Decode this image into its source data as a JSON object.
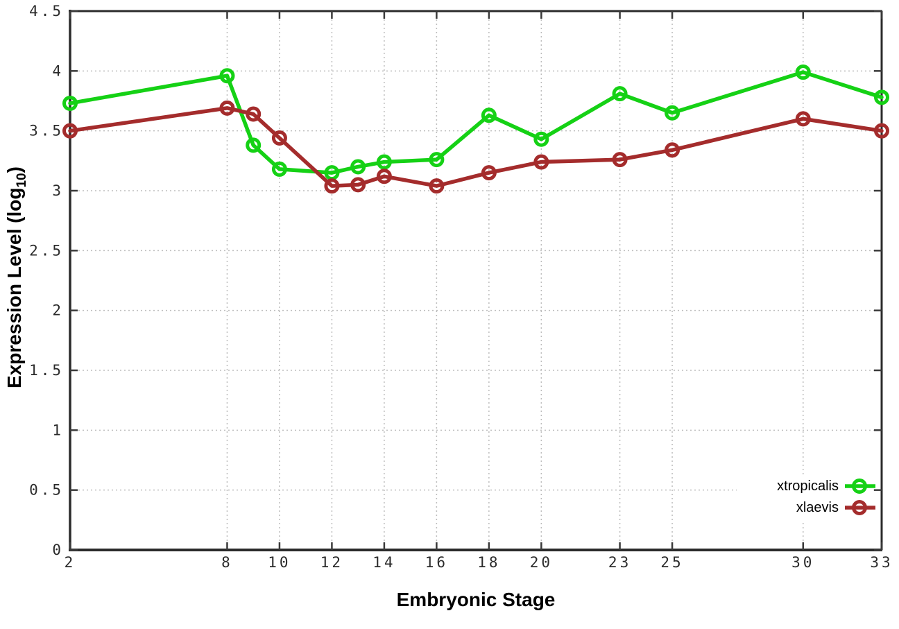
{
  "chart_data": {
    "type": "line",
    "title": "",
    "xlabel": "Embryonic Stage",
    "ylabel": "Expression Level (log10)",
    "ylabel_parts": {
      "pre": "Expression Level (log",
      "sub": "10",
      "post": ")"
    },
    "xlim": [
      2,
      33
    ],
    "ylim": [
      0,
      4.5
    ],
    "grid": true,
    "legend_position": "bottom-right",
    "xticks": [
      {
        "v": 2,
        "label": "2"
      },
      {
        "v": 8,
        "label": "8"
      },
      {
        "v": 10,
        "label": "10"
      },
      {
        "v": 12,
        "label": "12"
      },
      {
        "v": 14,
        "label": "14"
      },
      {
        "v": 16,
        "label": "16"
      },
      {
        "v": 18,
        "label": "18"
      },
      {
        "v": 20,
        "label": "20"
      },
      {
        "v": 23,
        "label": "23"
      },
      {
        "v": 25,
        "label": "25"
      },
      {
        "v": 30,
        "label": "30"
      },
      {
        "v": 33,
        "label": "33"
      }
    ],
    "yticks": [
      {
        "v": 0,
        "label": "0"
      },
      {
        "v": 0.5,
        "label": "0.5"
      },
      {
        "v": 1,
        "label": "1"
      },
      {
        "v": 1.5,
        "label": "1.5"
      },
      {
        "v": 2,
        "label": "2"
      },
      {
        "v": 2.5,
        "label": "2.5"
      },
      {
        "v": 3,
        "label": "3"
      },
      {
        "v": 3.5,
        "label": "3.5"
      },
      {
        "v": 4,
        "label": "4"
      },
      {
        "v": 4.5,
        "label": "4.5"
      }
    ],
    "series": [
      {
        "name": "xtropicalis",
        "color": "#15d115",
        "marker": "open-circle",
        "points": [
          [
            2,
            3.73
          ],
          [
            8,
            3.96
          ],
          [
            9,
            3.38
          ],
          [
            10,
            3.18
          ],
          [
            12,
            3.15
          ],
          [
            13,
            3.2
          ],
          [
            14,
            3.24
          ],
          [
            16,
            3.26
          ],
          [
            18,
            3.63
          ],
          [
            20,
            3.43
          ],
          [
            23,
            3.81
          ],
          [
            25,
            3.65
          ],
          [
            30,
            3.99
          ],
          [
            33,
            3.78
          ]
        ]
      },
      {
        "name": "xlaevis",
        "color": "#a42c2c",
        "marker": "open-circle",
        "points": [
          [
            2,
            3.5
          ],
          [
            8,
            3.69
          ],
          [
            9,
            3.64
          ],
          [
            10,
            3.44
          ],
          [
            12,
            3.04
          ],
          [
            13,
            3.05
          ],
          [
            14,
            3.12
          ],
          [
            16,
            3.04
          ],
          [
            18,
            3.15
          ],
          [
            20,
            3.24
          ],
          [
            23,
            3.26
          ],
          [
            25,
            3.34
          ],
          [
            30,
            3.6
          ],
          [
            33,
            3.5
          ]
        ]
      }
    ],
    "colors": {
      "grid": "#bdbdbd",
      "axis": "#2b2b2b",
      "tick": "#3a3a3a",
      "tick_label": "#2b2b2b",
      "background": "#ffffff"
    }
  }
}
